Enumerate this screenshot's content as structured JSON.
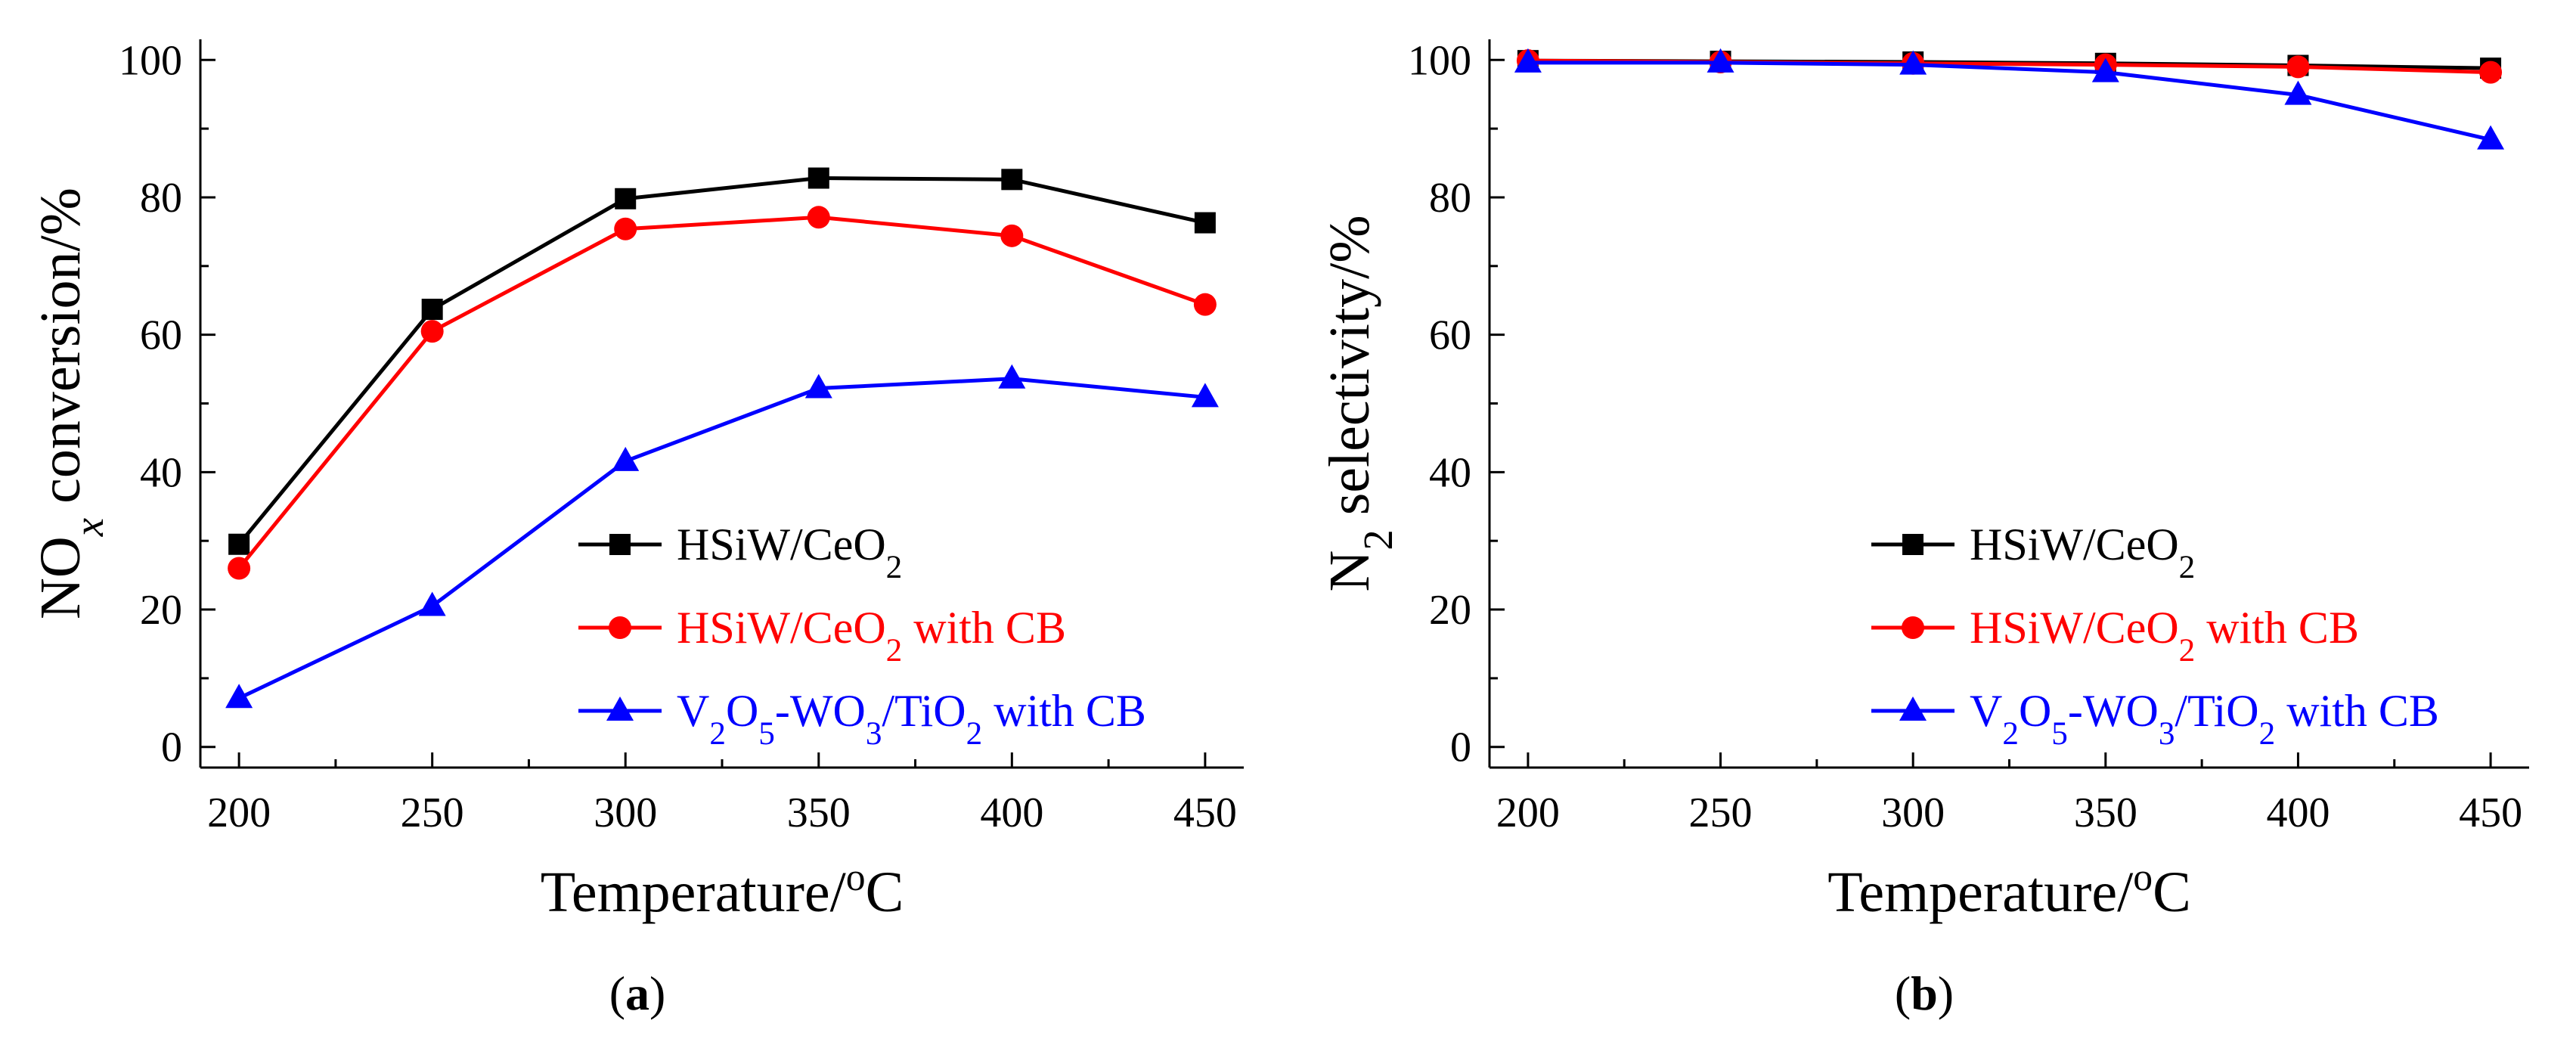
{
  "chart_data": [
    {
      "type": "line",
      "panel_label": "a",
      "xlabel": "Temperature/",
      "xlabel_sup": "o",
      "xlabel_unit": "C",
      "ylabel_main": "NO",
      "ylabel_sub": "x",
      "ylabel_rest": " conversion/%",
      "xlim": [
        190,
        460
      ],
      "ylim": [
        -3,
        103
      ],
      "xticks": [
        200,
        250,
        300,
        350,
        400,
        450
      ],
      "yticks": [
        0,
        20,
        40,
        60,
        80,
        100
      ],
      "grid": false,
      "legend_position": "lower-right",
      "x": [
        200,
        250,
        300,
        350,
        400,
        450
      ],
      "series": [
        {
          "name": "HSiW/CeO2",
          "label_parts": [
            [
              "HSiW/CeO",
              ""
            ],
            [
              "2",
              "sub"
            ]
          ],
          "color": "#000000",
          "marker": "square",
          "values": [
            29.5,
            63.7,
            79.8,
            82.8,
            82.6,
            76.3
          ]
        },
        {
          "name": "HSiW/CeO2 with CB",
          "label_parts": [
            [
              "HSiW/CeO",
              ""
            ],
            [
              "2",
              "sub"
            ],
            [
              " with CB",
              ""
            ]
          ],
          "color": "#ff0000",
          "marker": "circle",
          "values": [
            26.0,
            60.5,
            75.4,
            77.1,
            74.4,
            64.4
          ]
        },
        {
          "name": "V2O5-WO3/TiO2 with CB",
          "label_parts": [
            [
              "V",
              ""
            ],
            [
              "2",
              "sub"
            ],
            [
              "O",
              ""
            ],
            [
              "5",
              "sub"
            ],
            [
              "-WO",
              ""
            ],
            [
              "3",
              "sub"
            ],
            [
              "/TiO",
              ""
            ],
            [
              "2",
              "sub"
            ],
            [
              " with CB",
              ""
            ]
          ],
          "color": "#0000ff",
          "marker": "triangle",
          "values": [
            7.1,
            20.5,
            41.6,
            52.2,
            53.6,
            50.9
          ]
        }
      ]
    },
    {
      "type": "line",
      "panel_label": "b",
      "xlabel": "Temperature/",
      "xlabel_sup": "o",
      "xlabel_unit": "C",
      "ylabel_main": "N",
      "ylabel_sub": "2",
      "ylabel_rest": " selectivity/%",
      "xlim": [
        190,
        460
      ],
      "ylim": [
        -3,
        103
      ],
      "xticks": [
        200,
        250,
        300,
        350,
        400,
        450
      ],
      "yticks": [
        0,
        20,
        40,
        60,
        80,
        100
      ],
      "grid": false,
      "legend_position": "lower-right",
      "x": [
        200,
        250,
        300,
        350,
        400,
        450
      ],
      "series": [
        {
          "name": "HSiW/CeO2",
          "label_parts": [
            [
              "HSiW/CeO",
              ""
            ],
            [
              "2",
              "sub"
            ]
          ],
          "color": "#000000",
          "marker": "square",
          "values": [
            99.9,
            99.8,
            99.7,
            99.5,
            99.2,
            98.8
          ]
        },
        {
          "name": "HSiW/CeO2 with CB",
          "label_parts": [
            [
              "HSiW/CeO",
              ""
            ],
            [
              "2",
              "sub"
            ],
            [
              " with CB",
              ""
            ]
          ],
          "color": "#ff0000",
          "marker": "circle",
          "values": [
            99.9,
            99.7,
            99.5,
            99.3,
            99.0,
            98.2
          ]
        },
        {
          "name": "V2O5-WO3/TiO2 with CB",
          "label_parts": [
            [
              "V",
              ""
            ],
            [
              "2",
              "sub"
            ],
            [
              "O",
              ""
            ],
            [
              "5",
              "sub"
            ],
            [
              "-WO",
              ""
            ],
            [
              "3",
              "sub"
            ],
            [
              "/TiO",
              ""
            ],
            [
              "2",
              "sub"
            ],
            [
              " with CB",
              ""
            ]
          ],
          "color": "#0000ff",
          "marker": "triangle",
          "values": [
            99.6,
            99.6,
            99.3,
            98.2,
            94.9,
            88.4
          ]
        }
      ]
    }
  ]
}
